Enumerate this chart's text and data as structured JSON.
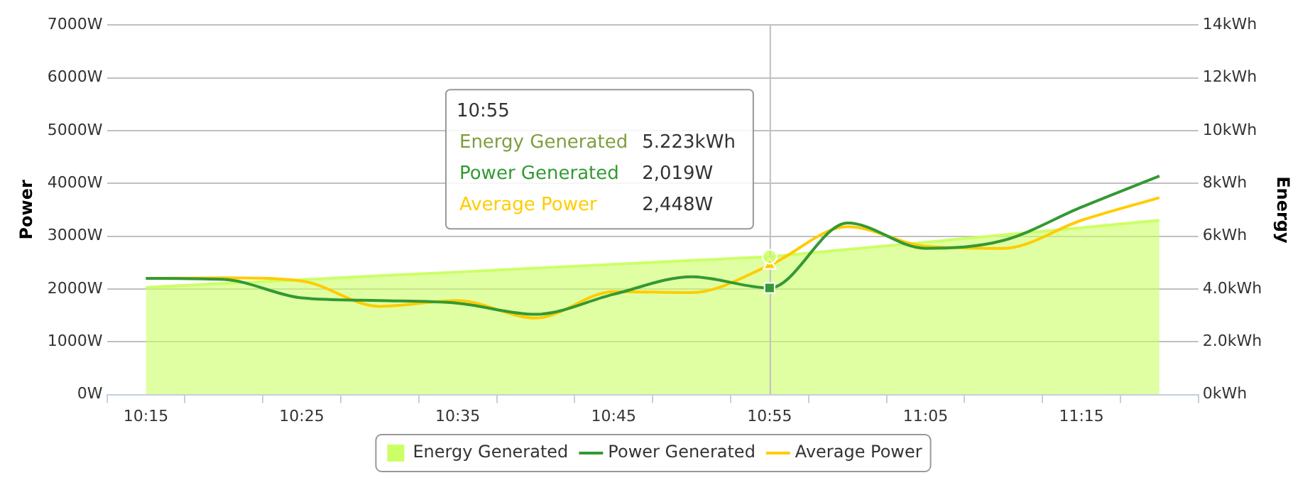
{
  "chart_data": {
    "type": "line",
    "categories": [
      "10:15",
      null,
      "10:25",
      null,
      "10:35",
      null,
      "10:45",
      null,
      "10:55",
      null,
      "11:05",
      null,
      "11:15",
      null
    ],
    "ylabel": "Power",
    "y2label": "Energy",
    "ylim": [
      0,
      7000
    ],
    "yticks": [
      {
        "value": 0,
        "label": "0W"
      },
      {
        "value": 1000,
        "label": "1000W"
      },
      {
        "value": 2000,
        "label": "2000W"
      },
      {
        "value": 3000,
        "label": "3000W"
      },
      {
        "value": 4000,
        "label": "4000W"
      },
      {
        "value": 5000,
        "label": "5000W"
      },
      {
        "value": 6000,
        "label": "6000W"
      },
      {
        "value": 7000,
        "label": "7000W"
      }
    ],
    "y2lim": [
      0,
      14
    ],
    "y2ticks": [
      {
        "value": 0,
        "label": "0kWh"
      },
      {
        "value": 2,
        "label": "2.0kWh"
      },
      {
        "value": 4,
        "label": "4.0kWh"
      },
      {
        "value": 6,
        "label": "6kWh"
      },
      {
        "value": 8,
        "label": "8kWh"
      },
      {
        "value": 10,
        "label": "10kWh"
      },
      {
        "value": 12,
        "label": "12kWh"
      },
      {
        "value": 14,
        "label": "14kWh"
      }
    ],
    "grid": "y",
    "legend": "bottom",
    "marker": "none",
    "annotations": [
      "10:55",
      "5.223kWh",
      "2,019W",
      "2,448W"
    ],
    "ref_lines": [
      {
        "axis": "x",
        "value": "10:55",
        "color": "#c0c0c0"
      }
    ],
    "series": [
      {
        "name": "Energy Generated",
        "type": "area",
        "axis": "y2",
        "color": "#ccff66",
        "values": [
          4.06,
          4.21,
          4.35,
          4.5,
          4.64,
          4.79,
          4.93,
          5.08,
          5.223,
          5.5,
          5.77,
          6.05,
          6.32,
          6.6
        ]
      },
      {
        "name": "Power Generated",
        "type": "line",
        "color": "#339933",
        "values": [
          2200,
          2180,
          1830,
          1780,
          1730,
          1520,
          1900,
          2230,
          2019,
          3250,
          2770,
          2920,
          3550,
          4140
        ]
      },
      {
        "name": "Average Power",
        "type": "line",
        "color": "#ffcc00",
        "values": [
          2200,
          2210,
          2150,
          1670,
          1780,
          1450,
          1950,
          1930,
          2448,
          3180,
          2810,
          2770,
          3300,
          3730
        ]
      }
    ]
  }
}
